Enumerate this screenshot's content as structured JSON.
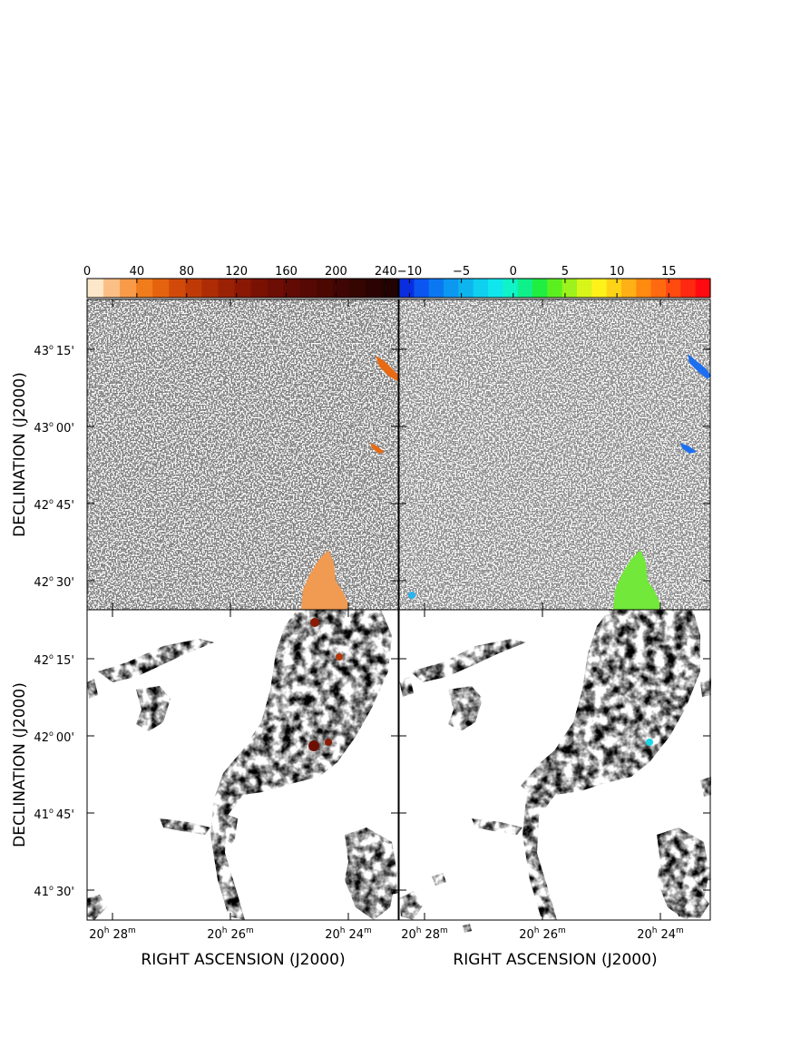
{
  "colorbars": {
    "intensity": {
      "ticks": [
        "0",
        "40",
        "80",
        "120",
        "160",
        "200",
        "240"
      ],
      "tick_values": [
        0,
        40,
        80,
        120,
        160,
        200,
        240
      ],
      "range": [
        0,
        250
      ],
      "colors": [
        "#fde7c9",
        "#fbbf86",
        "#f89a48",
        "#f07c1c",
        "#e5620f",
        "#d14a0a",
        "#c03a07",
        "#ad2c05",
        "#9b2104",
        "#8a1804",
        "#7a1204",
        "#6d0e04",
        "#610b04",
        "#560904",
        "#4b0803",
        "#400603",
        "#350502",
        "#2b0402",
        "#210302"
      ]
    },
    "velocity": {
      "ticks": [
        "−10",
        "−5",
        "0",
        "5",
        "10",
        "15"
      ],
      "tick_values": [
        -10,
        -5,
        0,
        5,
        10,
        15
      ],
      "range": [
        -11,
        19
      ],
      "colors": [
        "#0a2de0",
        "#0b55f0",
        "#0b78f2",
        "#0c98f0",
        "#0db4ee",
        "#0fd0ee",
        "#10e6ee",
        "#10f2c8",
        "#10f08a",
        "#20ee40",
        "#5cef20",
        "#9cf21c",
        "#d8f51a",
        "#fff21a",
        "#ffd418",
        "#ffb014",
        "#ff8a10",
        "#ff6a10",
        "#ff4a10",
        "#ff2810",
        "#ff0a10"
      ]
    }
  },
  "axes": {
    "ylabel": "DECLINATION (J2000)",
    "xlabel": "RIGHT ASCENSION (J2000)",
    "upper_dec_ticks": [
      {
        "deg": "43",
        "min": "15'"
      },
      {
        "deg": "43",
        "min": "00'"
      },
      {
        "deg": "42",
        "min": "45'"
      },
      {
        "deg": "42",
        "min": "30'"
      }
    ],
    "lower_dec_ticks": [
      {
        "deg": "42",
        "min": "15'"
      },
      {
        "deg": "42",
        "min": "00'"
      },
      {
        "deg": "41",
        "min": "45'"
      },
      {
        "deg": "41",
        "min": "30'"
      }
    ],
    "ra_ticks": [
      {
        "h": "20",
        "m": "28"
      },
      {
        "h": "20",
        "m": "26"
      },
      {
        "h": "20",
        "m": "24"
      }
    ],
    "deg_symbol": "o",
    "h_symbol": "h",
    "m_symbol": "m"
  },
  "chart_data": {
    "type": "heatmap",
    "panels": [
      {
        "position": "top-left",
        "colormap": "intensity",
        "dec_range": "42° 25' – 43° 23'"
      },
      {
        "position": "top-right",
        "colormap": "velocity",
        "dec_range": "42° 25' – 43° 23'"
      },
      {
        "position": "bottom-left",
        "colormap": "intensity",
        "dec_range": "41° 23' – 42° 25'"
      },
      {
        "position": "bottom-right",
        "colormap": "velocity",
        "dec_range": "41° 23' – 42° 25'"
      }
    ],
    "ra_range": "20h 28.6m – 20h 23.2m",
    "colorbar_ranges": {
      "intensity": [
        0,
        250
      ],
      "velocity": [
        -11,
        19
      ]
    },
    "grid": false
  }
}
